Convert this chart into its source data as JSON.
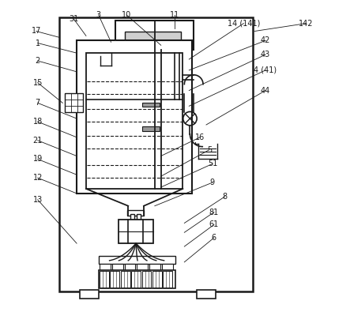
{
  "bg_color": "#ffffff",
  "line_color": "#1a1a1a",
  "figsize": [
    4.43,
    3.95
  ],
  "dpi": 100,
  "labels": {
    "31": [
      0.175,
      0.06,
      0.215,
      0.115
    ],
    "3": [
      0.255,
      0.048,
      0.295,
      0.135
    ],
    "10": [
      0.345,
      0.048,
      0.455,
      0.145
    ],
    "11": [
      0.5,
      0.048,
      0.5,
      0.09
    ],
    "14 (141)": [
      0.72,
      0.075,
      0.545,
      0.19
    ],
    "142": [
      0.92,
      0.075,
      0.755,
      0.1
    ],
    "42": [
      0.79,
      0.13,
      0.545,
      0.225
    ],
    "43": [
      0.79,
      0.175,
      0.545,
      0.29
    ],
    "4 (41)": [
      0.79,
      0.225,
      0.545,
      0.34
    ],
    "44": [
      0.79,
      0.29,
      0.6,
      0.4
    ],
    "17": [
      0.055,
      0.1,
      0.13,
      0.12
    ],
    "1": [
      0.06,
      0.138,
      0.185,
      0.17
    ],
    "2": [
      0.06,
      0.195,
      0.185,
      0.23
    ],
    "15": [
      0.06,
      0.265,
      0.14,
      0.33
    ],
    "7": [
      0.06,
      0.33,
      0.185,
      0.38
    ],
    "18": [
      0.06,
      0.39,
      0.185,
      0.44
    ],
    "21": [
      0.06,
      0.45,
      0.185,
      0.5
    ],
    "16": [
      0.58,
      0.44,
      0.455,
      0.5
    ],
    "19": [
      0.06,
      0.51,
      0.185,
      0.56
    ],
    "5": [
      0.61,
      0.48,
      0.455,
      0.565
    ],
    "51": [
      0.62,
      0.525,
      0.455,
      0.6
    ],
    "12": [
      0.06,
      0.57,
      0.185,
      0.62
    ],
    "9": [
      0.62,
      0.585,
      0.435,
      0.66
    ],
    "8": [
      0.66,
      0.63,
      0.53,
      0.715
    ],
    "13": [
      0.06,
      0.64,
      0.185,
      0.78
    ],
    "81": [
      0.625,
      0.68,
      0.53,
      0.745
    ],
    "61": [
      0.625,
      0.72,
      0.53,
      0.79
    ],
    "6": [
      0.625,
      0.762,
      0.53,
      0.84
    ]
  }
}
